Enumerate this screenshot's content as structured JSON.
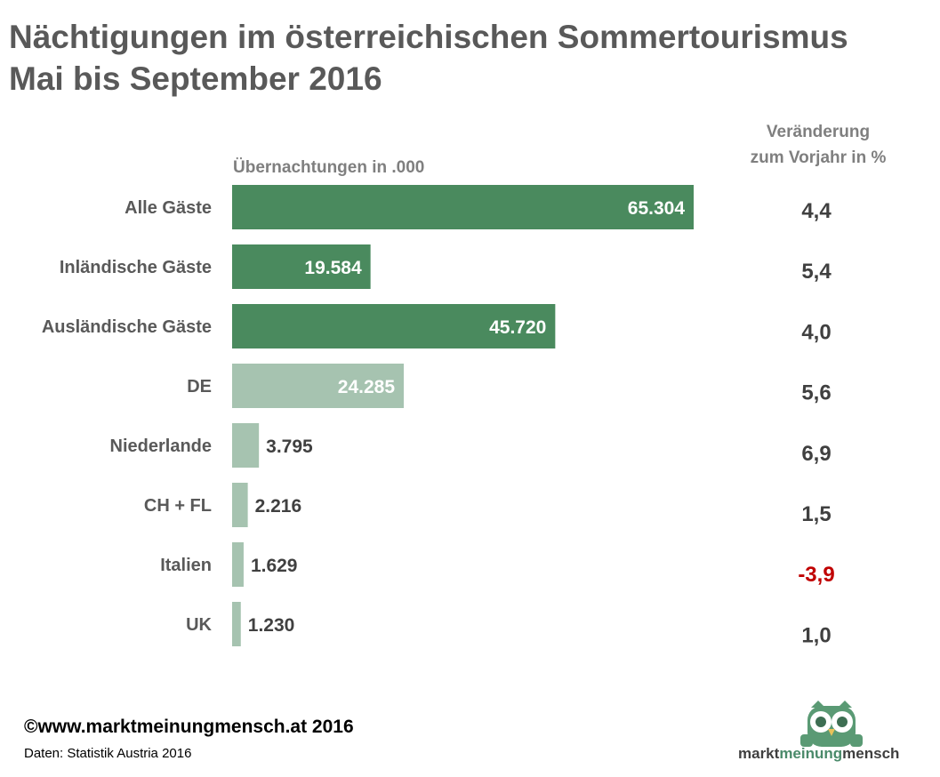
{
  "header": {
    "title_line1": "Nächtigungen im österreichischen Sommertourismus",
    "title_line2": "Mai bis September 2016"
  },
  "chart_data": {
    "type": "bar",
    "orientation": "horizontal",
    "xlabel": "Übernachtungen in .000",
    "change_header": [
      "Veränderung",
      "zum Vorjahr in %"
    ],
    "categories": [
      "Alle Gäste",
      "Inländische Gäste",
      "Ausländische Gäste",
      "DE",
      "Niederlande",
      "CH + FL",
      "Italien",
      "UK"
    ],
    "values": [
      65304,
      19584,
      45720,
      24285,
      3795,
      2216,
      1629,
      1230
    ],
    "value_labels": [
      "65.304",
      "19.584",
      "45.720",
      "24.285",
      "3.795",
      "2.216",
      "1.629",
      "1.230"
    ],
    "changes": [
      4.4,
      5.4,
      4.0,
      5.6,
      6.9,
      1.5,
      -3.9,
      1.0
    ],
    "change_labels": [
      "4,4",
      "5,4",
      "4,0",
      "5,6",
      "6,9",
      "1,5",
      "-3,9",
      "1,0"
    ],
    "bar_colors": [
      "#4a8a5e",
      "#4a8a5e",
      "#4a8a5e",
      "#a6c3b0",
      "#a6c3b0",
      "#a6c3b0",
      "#a6c3b0",
      "#a6c3b0"
    ],
    "negative_color": "#c00000",
    "grid": false,
    "legend": "none"
  },
  "footer": {
    "copyright": "©www.marktmeinungmensch.at 2016",
    "source": "Daten: Statistik Austria 2016"
  },
  "logo": {
    "part1": "markt",
    "part2": "meinung",
    "part3": "mensch",
    "icon": "owl-icon"
  }
}
